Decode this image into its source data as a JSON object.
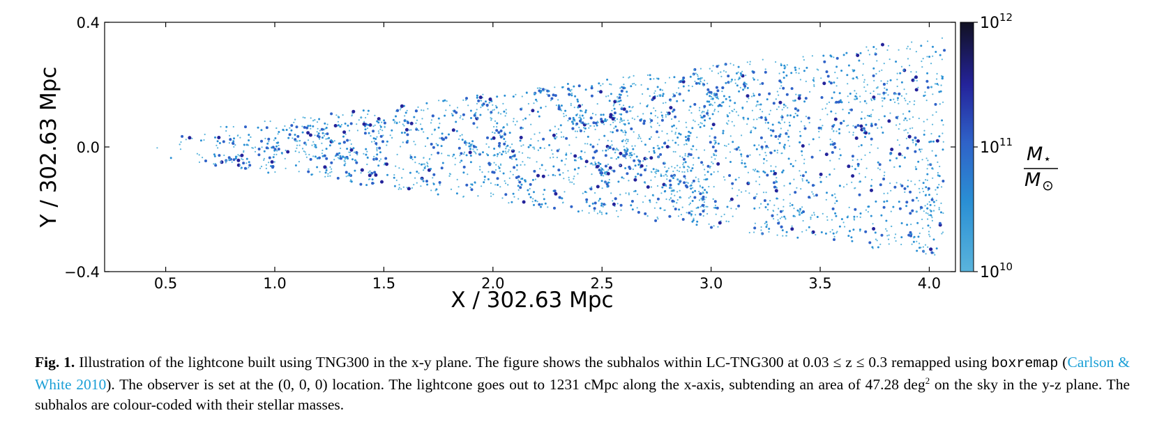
{
  "figure": {
    "chart_data": {
      "type": "scatter",
      "description_units": {
        "xlabel": "X / 302.63 Mpc",
        "ylabel": "Y / 302.63 Mpc"
      },
      "xlabel": "X / 302.63 Mpc",
      "ylabel": "Y / 302.63 Mpc",
      "xlim": [
        0.22,
        4.12
      ],
      "ylim": [
        -0.4,
        0.4
      ],
      "x_ticks": [
        "0.5",
        "1.0",
        "1.5",
        "2.0",
        "2.5",
        "3.0",
        "3.5",
        "4.0"
      ],
      "x_tick_values": [
        0.5,
        1.0,
        1.5,
        2.0,
        2.5,
        3.0,
        3.5,
        4.0
      ],
      "y_ticks": [
        "0.4",
        "0.0",
        "−0.4"
      ],
      "y_tick_values": [
        0.4,
        0.0,
        -0.4
      ],
      "cone": {
        "apex_x": 0.0,
        "x_start": 0.41,
        "x_end": 4.07,
        "half_opening_slope": 0.087
      },
      "colorbar": {
        "label_numerator": "M",
        "label_numerator_sub": "⋆",
        "label_denominator": "M",
        "label_denominator_sub": "⊙",
        "scale": "log",
        "range": [
          10000000000.0,
          1000000000000.0
        ],
        "ticks": [
          {
            "base": "10",
            "exp": "12",
            "value": 1000000000000.0
          },
          {
            "base": "10",
            "exp": "11",
            "value": 100000000000.0
          },
          {
            "base": "10",
            "exp": "10",
            "value": 10000000000.0
          }
        ],
        "colors": [
          "#5ab4dc",
          "#2a8fd4",
          "#2f62c8",
          "#24239a",
          "#111122"
        ]
      }
    }
  },
  "caption": {
    "fig_label": "Fig. 1.",
    "text1": " Illustration of the lightcone built using TNG300 in the x-y plane. The figure shows the subhalos within LC-TNG300 at 0.03 ≤ z ≤ 0.3 remapped using ",
    "code": "boxremap",
    "text2": " (",
    "citation": "Carlson & White 2010",
    "text3": "). The observer is set at the (0, 0, 0) location. The lightcone goes out to 1231 cMpc along the x-axis, subtending an area of 47.28 deg",
    "sup": "2",
    "text4": " on the sky in the y-z plane. The subhalos are colour-coded with their stellar masses."
  }
}
